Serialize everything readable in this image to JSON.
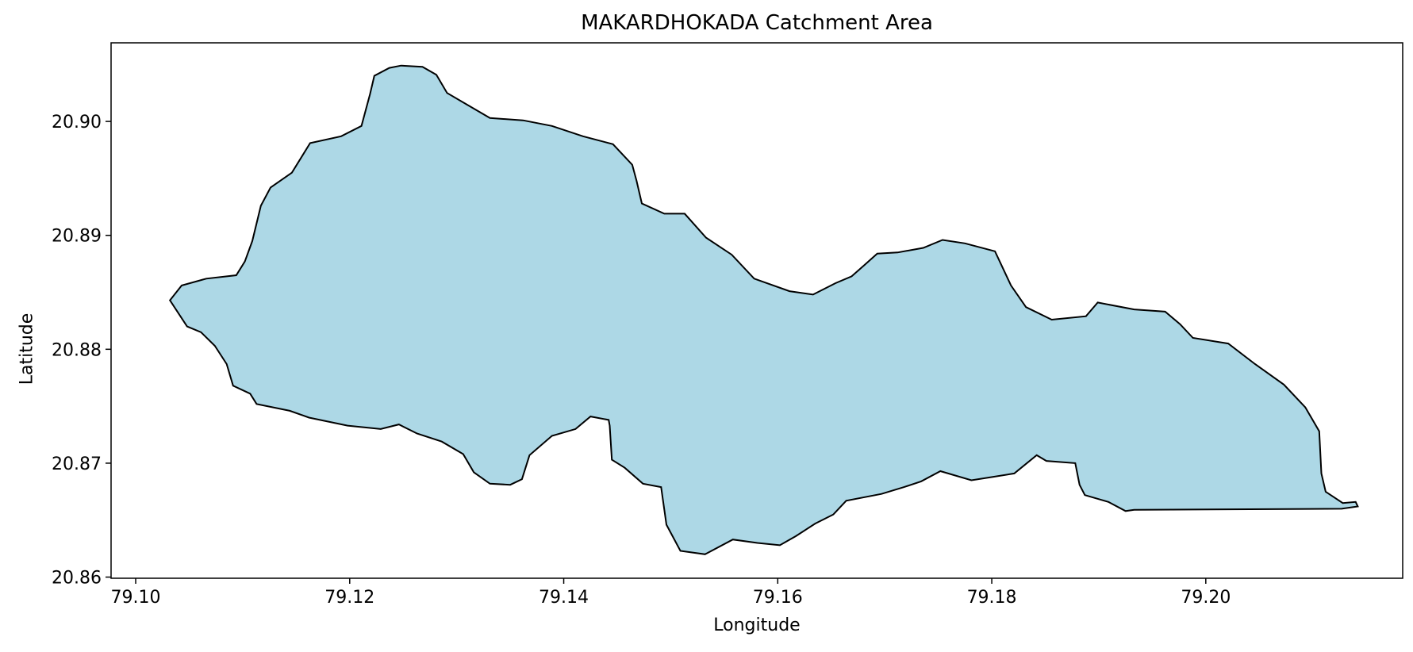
{
  "title": "MAKARDHOKADA Catchment Area",
  "xlabel": "Longitude",
  "ylabel": "Latitude",
  "x_ticks": [
    "79.10",
    "79.12",
    "79.14",
    "79.16",
    "79.18",
    "79.20"
  ],
  "y_ticks": [
    "20.86",
    "20.87",
    "20.88",
    "20.89",
    "20.90"
  ],
  "colors": {
    "fill": "#add8e6",
    "outline": "#000000",
    "background": "#ffffff"
  },
  "chart_data": {
    "type": "area",
    "title": "MAKARDHOKADA Catchment Area",
    "xlabel": "Longitude",
    "ylabel": "Latitude",
    "xlim": [
      79.0977,
      79.2184
    ],
    "ylim": [
      20.8599,
      20.9069
    ],
    "grid": false,
    "legend": "none",
    "polygon": [
      [
        79.1032,
        20.8843
      ],
      [
        79.1043,
        20.8856
      ],
      [
        79.1066,
        20.8862
      ],
      [
        79.1094,
        20.8865
      ],
      [
        79.1102,
        20.8877
      ],
      [
        79.1109,
        20.8895
      ],
      [
        79.1117,
        20.8926
      ],
      [
        79.1126,
        20.8942
      ],
      [
        79.1146,
        20.8955
      ],
      [
        79.1163,
        20.8981
      ],
      [
        79.1192,
        20.8987
      ],
      [
        79.1211,
        20.8996
      ],
      [
        79.1219,
        20.9024
      ],
      [
        79.1223,
        20.904
      ],
      [
        79.1237,
        20.9047
      ],
      [
        79.1248,
        20.9049
      ],
      [
        79.1268,
        20.9048
      ],
      [
        79.1281,
        20.9041
      ],
      [
        79.1291,
        20.9025
      ],
      [
        79.1311,
        20.9014
      ],
      [
        79.1331,
        20.9003
      ],
      [
        79.1362,
        20.9001
      ],
      [
        79.1389,
        20.8996
      ],
      [
        79.1418,
        20.8987
      ],
      [
        79.1446,
        20.898
      ],
      [
        79.1464,
        20.8962
      ],
      [
        79.1468,
        20.8948
      ],
      [
        79.1473,
        20.8928
      ],
      [
        79.1494,
        20.8919
      ],
      [
        79.1513,
        20.8919
      ],
      [
        79.1533,
        20.8898
      ],
      [
        79.1557,
        20.8883
      ],
      [
        79.1578,
        20.8862
      ],
      [
        79.1611,
        20.8851
      ],
      [
        79.1633,
        20.8848
      ],
      [
        79.1654,
        20.8858
      ],
      [
        79.1669,
        20.8864
      ],
      [
        79.1681,
        20.8874
      ],
      [
        79.1693,
        20.8884
      ],
      [
        79.1712,
        20.8885
      ],
      [
        79.1736,
        20.8889
      ],
      [
        79.1754,
        20.8896
      ],
      [
        79.1775,
        20.8893
      ],
      [
        79.1803,
        20.8886
      ],
      [
        79.1818,
        20.8856
      ],
      [
        79.1832,
        20.8837
      ],
      [
        79.1856,
        20.8826
      ],
      [
        79.1888,
        20.8829
      ],
      [
        79.1899,
        20.8841
      ],
      [
        79.1933,
        20.8835
      ],
      [
        79.1962,
        20.8833
      ],
      [
        79.1976,
        20.8822
      ],
      [
        79.1988,
        20.881
      ],
      [
        79.2021,
        20.8805
      ],
      [
        79.2046,
        20.8787
      ],
      [
        79.2073,
        20.8769
      ],
      [
        79.2093,
        20.8749
      ],
      [
        79.2106,
        20.8728
      ],
      [
        79.2108,
        20.8691
      ],
      [
        79.2112,
        20.8675
      ],
      [
        79.2128,
        20.8665
      ],
      [
        79.214,
        20.8666
      ],
      [
        79.2142,
        20.8662
      ],
      [
        79.2127,
        20.866
      ],
      [
        79.1933,
        20.8659
      ],
      [
        79.1925,
        20.8658
      ],
      [
        79.1909,
        20.8666
      ],
      [
        79.1887,
        20.8672
      ],
      [
        79.1882,
        20.8681
      ],
      [
        79.1878,
        20.87
      ],
      [
        79.1851,
        20.8702
      ],
      [
        79.1842,
        20.8707
      ],
      [
        79.1821,
        20.8691
      ],
      [
        79.1801,
        20.8688
      ],
      [
        79.1781,
        20.8685
      ],
      [
        79.1752,
        20.8693
      ],
      [
        79.1734,
        20.8684
      ],
      [
        79.1718,
        20.8679
      ],
      [
        79.1697,
        20.8673
      ],
      [
        79.1664,
        20.8667
      ],
      [
        79.1652,
        20.8655
      ],
      [
        79.1635,
        20.8647
      ],
      [
        79.1617,
        20.8636
      ],
      [
        79.1602,
        20.8628
      ],
      [
        79.1581,
        20.863
      ],
      [
        79.1558,
        20.8633
      ],
      [
        79.1532,
        20.862
      ],
      [
        79.1509,
        20.8623
      ],
      [
        79.1496,
        20.8646
      ],
      [
        79.1491,
        20.8679
      ],
      [
        79.1474,
        20.8682
      ],
      [
        79.1457,
        20.8696
      ],
      [
        79.1445,
        20.8703
      ],
      [
        79.1443,
        20.8733
      ],
      [
        79.1442,
        20.8738
      ],
      [
        79.1425,
        20.8741
      ],
      [
        79.1411,
        20.873
      ],
      [
        79.1389,
        20.8724
      ],
      [
        79.1368,
        20.8707
      ],
      [
        79.1361,
        20.8686
      ],
      [
        79.135,
        20.8681
      ],
      [
        79.1331,
        20.8682
      ],
      [
        79.1316,
        20.8692
      ],
      [
        79.1306,
        20.8708
      ],
      [
        79.1286,
        20.8719
      ],
      [
        79.1263,
        20.8726
      ],
      [
        79.1246,
        20.8734
      ],
      [
        79.1229,
        20.873
      ],
      [
        79.1198,
        20.8733
      ],
      [
        79.1162,
        20.874
      ],
      [
        79.1144,
        20.8746
      ],
      [
        79.1113,
        20.8752
      ],
      [
        79.1107,
        20.8761
      ],
      [
        79.1091,
        20.8768
      ],
      [
        79.1085,
        20.8787
      ],
      [
        79.1074,
        20.8803
      ],
      [
        79.1061,
        20.8815
      ],
      [
        79.1048,
        20.882
      ],
      [
        79.1032,
        20.8843
      ]
    ]
  }
}
